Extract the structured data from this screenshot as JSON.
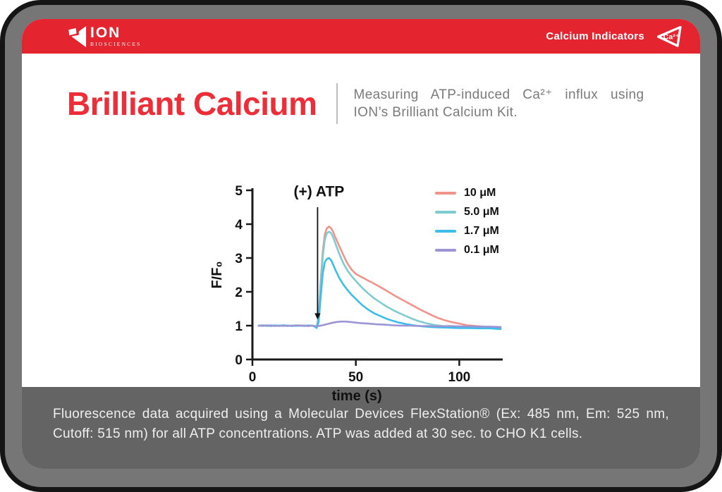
{
  "header": {
    "logo_text": "ION",
    "logo_subtext": "BIOSCIENCES",
    "category_label": "Calcium Indicators",
    "badge_text": "Ca²⁺"
  },
  "main": {
    "title": "Brilliant Calcium",
    "subtitle": "Measuring ATP-induced Ca²⁺ influx using ION’s Brilliant Calcium Kit."
  },
  "footer": {
    "caption": "Fluorescence data acquired using a Molecular Devices FlexStation® (Ex: 485 nm, Em: 525 nm, Cutoff: 515 nm) for all ATP concentrations. ATP was added at 30 sec. to CHO K1 cells."
  },
  "colors": {
    "header_red": "#E4242F",
    "title_red": "#ED2E38",
    "footer_gray": "#646464",
    "bezel_gray": "#767676",
    "frame_black": "#151515"
  },
  "chart_data": {
    "type": "line",
    "title": "",
    "xlabel": "time (s)",
    "ylabel": "F/F₀",
    "xlim": [
      0,
      121
    ],
    "ylim": [
      0,
      5
    ],
    "xticks": [
      0,
      50,
      100
    ],
    "yticks": [
      0,
      1,
      2,
      3,
      4,
      5
    ],
    "grid": false,
    "legend_position": "top-right",
    "annotation": {
      "text": "(+) ATP",
      "x": 31.5,
      "text_y": 4.82,
      "arrow_top_y": 4.5,
      "arrow_bottom_y": 1.18
    },
    "series": [
      {
        "name": "10 μM",
        "color": "#F2938A",
        "points": [
          [
            3,
            1.0
          ],
          [
            5,
            0.99
          ],
          [
            7,
            1.0
          ],
          [
            9,
            1.01
          ],
          [
            11,
            1.0
          ],
          [
            13,
            0.99
          ],
          [
            15,
            1.0
          ],
          [
            17,
            1.0
          ],
          [
            19,
            0.99
          ],
          [
            21,
            1.0
          ],
          [
            23,
            1.01
          ],
          [
            25,
            1.0
          ],
          [
            27,
            0.99
          ],
          [
            29,
            1.0
          ],
          [
            30,
            0.99
          ],
          [
            31,
            0.95
          ],
          [
            32,
            1.3
          ],
          [
            33,
            2.3
          ],
          [
            34,
            3.2
          ],
          [
            35,
            3.7
          ],
          [
            36,
            3.88
          ],
          [
            37,
            3.93
          ],
          [
            38,
            3.88
          ],
          [
            39,
            3.78
          ],
          [
            40,
            3.62
          ],
          [
            42,
            3.35
          ],
          [
            44,
            3.08
          ],
          [
            46,
            2.83
          ],
          [
            48,
            2.65
          ],
          [
            50,
            2.53
          ],
          [
            52,
            2.46
          ],
          [
            54,
            2.4
          ],
          [
            56,
            2.33
          ],
          [
            58,
            2.27
          ],
          [
            60,
            2.2
          ],
          [
            63,
            2.1
          ],
          [
            66,
            1.99
          ],
          [
            69,
            1.88
          ],
          [
            72,
            1.78
          ],
          [
            75,
            1.68
          ],
          [
            78,
            1.58
          ],
          [
            81,
            1.48
          ],
          [
            84,
            1.39
          ],
          [
            87,
            1.3
          ],
          [
            90,
            1.22
          ],
          [
            93,
            1.16
          ],
          [
            96,
            1.11
          ],
          [
            100,
            1.06
          ],
          [
            104,
            1.01
          ],
          [
            108,
            0.99
          ],
          [
            112,
            0.97
          ],
          [
            116,
            0.95
          ],
          [
            120,
            0.93
          ]
        ]
      },
      {
        "name": "5.0 μM",
        "color": "#7FCBD2",
        "points": [
          [
            3,
            1.0
          ],
          [
            5,
            1.0
          ],
          [
            7,
            0.99
          ],
          [
            9,
            1.0
          ],
          [
            11,
            1.01
          ],
          [
            13,
            1.0
          ],
          [
            15,
            0.99
          ],
          [
            17,
            1.0
          ],
          [
            19,
            1.0
          ],
          [
            21,
            0.99
          ],
          [
            23,
            1.0
          ],
          [
            25,
            1.0
          ],
          [
            27,
            1.01
          ],
          [
            29,
            1.0
          ],
          [
            30,
            0.98
          ],
          [
            31,
            0.94
          ],
          [
            32,
            1.25
          ],
          [
            33,
            2.15
          ],
          [
            34,
            3.05
          ],
          [
            35,
            3.55
          ],
          [
            36,
            3.73
          ],
          [
            37,
            3.78
          ],
          [
            38,
            3.74
          ],
          [
            39,
            3.62
          ],
          [
            40,
            3.45
          ],
          [
            42,
            3.12
          ],
          [
            44,
            2.84
          ],
          [
            46,
            2.62
          ],
          [
            48,
            2.46
          ],
          [
            50,
            2.32
          ],
          [
            53,
            2.12
          ],
          [
            56,
            1.95
          ],
          [
            59,
            1.8
          ],
          [
            62,
            1.68
          ],
          [
            65,
            1.56
          ],
          [
            68,
            1.46
          ],
          [
            71,
            1.37
          ],
          [
            74,
            1.29
          ],
          [
            77,
            1.21
          ],
          [
            80,
            1.14
          ],
          [
            84,
            1.07
          ],
          [
            88,
            1.02
          ],
          [
            92,
            0.99
          ],
          [
            96,
            0.97
          ],
          [
            100,
            0.96
          ],
          [
            105,
            0.95
          ],
          [
            110,
            0.94
          ],
          [
            115,
            0.92
          ],
          [
            120,
            0.9
          ]
        ]
      },
      {
        "name": "1.7 μM",
        "color": "#3DBDE9",
        "points": [
          [
            3,
            1.0
          ],
          [
            5,
            1.01
          ],
          [
            7,
            1.0
          ],
          [
            9,
            0.99
          ],
          [
            11,
            1.0
          ],
          [
            13,
            1.0
          ],
          [
            15,
            1.01
          ],
          [
            17,
            1.0
          ],
          [
            19,
            0.99
          ],
          [
            21,
            1.0
          ],
          [
            23,
            1.0
          ],
          [
            25,
            0.99
          ],
          [
            27,
            1.0
          ],
          [
            29,
            1.0
          ],
          [
            30,
            0.98
          ],
          [
            31,
            0.93
          ],
          [
            32,
            1.1
          ],
          [
            33,
            1.85
          ],
          [
            34,
            2.55
          ],
          [
            35,
            2.88
          ],
          [
            36,
            2.97
          ],
          [
            37,
            3.0
          ],
          [
            38,
            2.94
          ],
          [
            39,
            2.81
          ],
          [
            40,
            2.66
          ],
          [
            42,
            2.41
          ],
          [
            44,
            2.21
          ],
          [
            46,
            2.05
          ],
          [
            48,
            1.91
          ],
          [
            50,
            1.79
          ],
          [
            53,
            1.61
          ],
          [
            56,
            1.47
          ],
          [
            59,
            1.36
          ],
          [
            62,
            1.28
          ],
          [
            65,
            1.2
          ],
          [
            68,
            1.14
          ],
          [
            71,
            1.09
          ],
          [
            74,
            1.05
          ],
          [
            78,
            1.01
          ],
          [
            82,
            0.98
          ],
          [
            86,
            0.96
          ],
          [
            90,
            0.95
          ],
          [
            95,
            0.94
          ],
          [
            100,
            0.93
          ],
          [
            105,
            0.93
          ],
          [
            110,
            0.92
          ],
          [
            115,
            0.92
          ],
          [
            120,
            0.9
          ]
        ]
      },
      {
        "name": "0.1 μM",
        "color": "#9B95D7",
        "points": [
          [
            3,
            1.0
          ],
          [
            5,
            1.0
          ],
          [
            7,
            1.01
          ],
          [
            9,
            1.0
          ],
          [
            11,
            0.99
          ],
          [
            13,
            1.0
          ],
          [
            15,
            1.0
          ],
          [
            17,
            0.99
          ],
          [
            19,
            1.0
          ],
          [
            21,
            1.01
          ],
          [
            23,
            1.0
          ],
          [
            25,
            1.0
          ],
          [
            27,
            0.99
          ],
          [
            29,
            1.0
          ],
          [
            31,
            0.98
          ],
          [
            33,
            1.0
          ],
          [
            35,
            1.03
          ],
          [
            37,
            1.06
          ],
          [
            39,
            1.09
          ],
          [
            41,
            1.11
          ],
          [
            43,
            1.12
          ],
          [
            45,
            1.12
          ],
          [
            47,
            1.11
          ],
          [
            50,
            1.09
          ],
          [
            53,
            1.07
          ],
          [
            56,
            1.06
          ],
          [
            60,
            1.04
          ],
          [
            64,
            1.03
          ],
          [
            68,
            1.01
          ],
          [
            72,
            1.0
          ],
          [
            76,
            1.0
          ],
          [
            80,
            0.99
          ],
          [
            85,
            0.99
          ],
          [
            90,
            0.98
          ],
          [
            95,
            0.99
          ],
          [
            100,
            0.98
          ],
          [
            105,
            0.98
          ],
          [
            110,
            0.97
          ],
          [
            115,
            0.97
          ],
          [
            120,
            0.96
          ]
        ]
      }
    ]
  }
}
